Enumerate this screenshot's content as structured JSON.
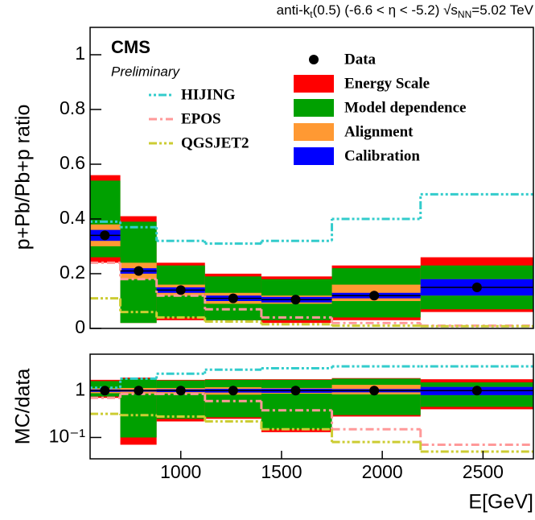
{
  "chart_data": [
    {
      "type": "step",
      "header_parts": [
        "anti-k",
        "t",
        "(0.5)  (-6.6 < η < -5.2)  √s",
        "NN",
        "=5.02 TeV"
      ],
      "ylabel": "p+Pb/Pb+p ratio",
      "experiment": "CMS",
      "status": "Preliminary",
      "xlim": [
        550,
        2750
      ],
      "ylim": [
        0,
        1.1
      ],
      "yticks": [
        0,
        0.2,
        0.4,
        0.6,
        0.8,
        1
      ],
      "bins": [
        550,
        700,
        880,
        1120,
        1400,
        1750,
        2190,
        2750
      ],
      "data": {
        "name": "Data",
        "color": "#000000",
        "x": [
          623,
          791,
          1000,
          1260,
          1570,
          1960,
          2470
        ],
        "values": [
          0.34,
          0.21,
          0.14,
          0.11,
          0.105,
          0.12,
          0.15
        ]
      },
      "bands": [
        {
          "name": "Energy Scale",
          "color": "#ff0000",
          "low": [
            0.24,
            0.02,
            0.03,
            0.03,
            0.02,
            0.03,
            0.06
          ],
          "high": [
            0.56,
            0.41,
            0.24,
            0.2,
            0.19,
            0.23,
            0.26
          ]
        },
        {
          "name": "Model dependence",
          "color": "#00a000",
          "low": [
            0.26,
            0.02,
            0.04,
            0.03,
            0.03,
            0.04,
            0.07
          ],
          "high": [
            0.54,
            0.39,
            0.23,
            0.19,
            0.18,
            0.22,
            0.23
          ]
        },
        {
          "name": "Alignment",
          "color": "#ff9933",
          "low": [
            0.3,
            0.18,
            0.12,
            0.09,
            0.09,
            0.1,
            0.12
          ],
          "high": [
            0.38,
            0.24,
            0.16,
            0.13,
            0.12,
            0.16,
            0.18
          ]
        },
        {
          "name": "Calibration",
          "color": "#0000ff",
          "low": [
            0.32,
            0.2,
            0.13,
            0.1,
            0.095,
            0.11,
            0.12
          ],
          "high": [
            0.36,
            0.22,
            0.15,
            0.12,
            0.115,
            0.13,
            0.18
          ]
        }
      ],
      "models": [
        {
          "name": "HIJING",
          "color": "#33cccc",
          "dash": "3 3 3 3 10 3",
          "values": [
            0.39,
            0.37,
            0.32,
            0.31,
            0.32,
            0.4,
            0.49
          ]
        },
        {
          "name": "EPOS",
          "color": "#ff9999",
          "dash": "10 4 3 4",
          "values": [
            0.24,
            0.18,
            0.12,
            0.07,
            0.04,
            0.02,
            0.01
          ]
        },
        {
          "name": "QGSJET2",
          "color": "#cccc33",
          "dash": "10 3 3 3 3 3",
          "values": [
            0.11,
            0.06,
            0.04,
            0.025,
            0.015,
            0.01,
            0.008
          ]
        }
      ]
    },
    {
      "type": "step",
      "log_y": true,
      "ylabel": "MC/data",
      "xlabel": "E[GeV]",
      "xlim": [
        550,
        2750
      ],
      "ylim": [
        0.035,
        6
      ],
      "xticks": [
        1000,
        1500,
        2000,
        2500
      ],
      "yticks": [
        1,
        {
          "value": 0.1,
          "label": "10⁻¹"
        }
      ],
      "bins": [
        550,
        700,
        880,
        1120,
        1400,
        1750,
        2190,
        2750
      ],
      "data": {
        "color": "#000000",
        "x": [
          623,
          791,
          1000,
          1260,
          1570,
          1960,
          2470
        ],
        "values": [
          1,
          1,
          1,
          1,
          1,
          1,
          1
        ]
      },
      "bands": [
        {
          "color": "#ff0000",
          "low": [
            0.7,
            0.07,
            0.22,
            0.25,
            0.13,
            0.28,
            0.4
          ],
          "high": [
            1.7,
            1.9,
            1.7,
            1.75,
            1.75,
            1.85,
            1.75
          ]
        },
        {
          "color": "#00a000",
          "low": [
            0.75,
            0.1,
            0.25,
            0.27,
            0.15,
            0.3,
            0.45
          ],
          "high": [
            1.6,
            1.8,
            1.65,
            1.7,
            1.7,
            1.8,
            1.5
          ]
        },
        {
          "color": "#ff9933",
          "low": [
            0.88,
            0.86,
            0.86,
            0.82,
            0.86,
            0.83,
            0.8
          ],
          "high": [
            1.12,
            1.14,
            1.14,
            1.18,
            1.14,
            1.33,
            1.2
          ]
        },
        {
          "color": "#0000ff",
          "low": [
            0.94,
            0.95,
            0.93,
            0.91,
            0.9,
            0.92,
            0.8
          ],
          "high": [
            1.06,
            1.05,
            1.07,
            1.09,
            1.1,
            1.08,
            1.2
          ]
        }
      ],
      "models": [
        {
          "color": "#33cccc",
          "dash": "3 3 3 3 10 3",
          "values": [
            1.15,
            1.8,
            2.3,
            2.8,
            3.0,
            3.3,
            3.3
          ]
        },
        {
          "color": "#ff9999",
          "dash": "10 4 3 4",
          "values": [
            0.7,
            0.85,
            0.85,
            0.6,
            0.38,
            0.15,
            0.07
          ]
        },
        {
          "color": "#cccc33",
          "dash": "10 3 3 3 3 3",
          "values": [
            0.32,
            0.3,
            0.28,
            0.22,
            0.15,
            0.08,
            0.05
          ]
        }
      ]
    }
  ]
}
